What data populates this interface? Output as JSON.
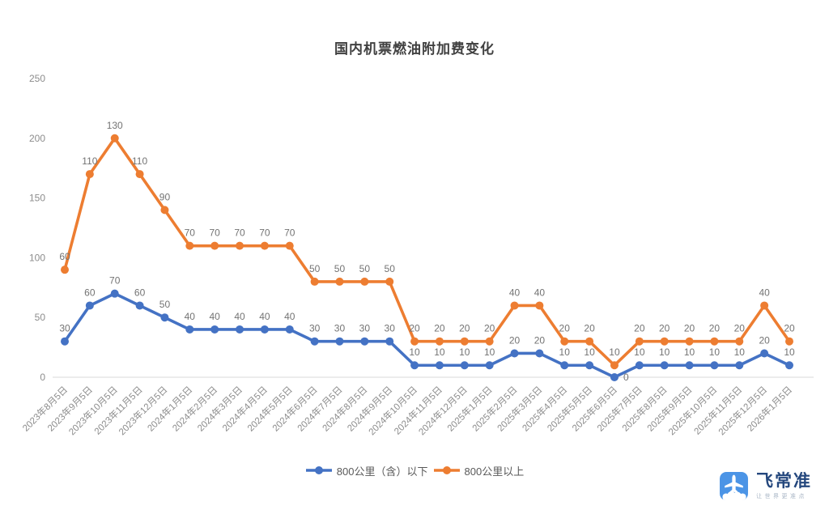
{
  "title": "国内机票燃油附加费变化",
  "chart_data": {
    "type": "line",
    "stacked": true,
    "title": "国内机票燃油附加费变化",
    "xlabel": "",
    "ylabel": "",
    "ylim": [
      0,
      250
    ],
    "yticks": [
      0,
      50,
      100,
      150,
      200,
      250
    ],
    "grid": false,
    "legend_position": "bottom",
    "data_labels": true,
    "categories": [
      "2023年8月5日",
      "2023年9月5日",
      "2023年10月5日",
      "2023年11月5日",
      "2023年12月5日",
      "2024年1月5日",
      "2024年2月5日",
      "2024年3月5日",
      "2024年4月5日",
      "2024年5月5日",
      "2024年6月5日",
      "2024年7月5日",
      "2024年8月5日",
      "2024年9月5日",
      "2024年10月5日",
      "2024年11月5日",
      "2024年12月5日",
      "2025年1月5日",
      "2025年2月5日",
      "2025年3月5日",
      "2025年4月5日",
      "2025年5月5日",
      "2025年6月5日",
      "2025年7月5日",
      "2025年8月5日",
      "2025年9月5日",
      "2025年10月5日",
      "2025年11月5日",
      "2025年12月5日",
      "2026年1月5日"
    ],
    "series": [
      {
        "name": "800公里（含）以下",
        "color": "#4472C4",
        "values": [
          30,
          60,
          70,
          60,
          50,
          40,
          40,
          40,
          40,
          40,
          30,
          30,
          30,
          30,
          10,
          10,
          10,
          10,
          20,
          20,
          10,
          10,
          0,
          10,
          10,
          10,
          10,
          10,
          20,
          10
        ]
      },
      {
        "name": "800公里以上",
        "color": "#ED7D31",
        "values": [
          60,
          110,
          130,
          110,
          90,
          70,
          70,
          70,
          70,
          70,
          50,
          50,
          50,
          50,
          20,
          20,
          20,
          20,
          40,
          40,
          20,
          20,
          10,
          20,
          20,
          20,
          20,
          20,
          40,
          20
        ]
      }
    ]
  },
  "legend": {
    "items": [
      {
        "label": "800公里（含）以下",
        "color": "#4472C4"
      },
      {
        "label": "800公里以上",
        "color": "#ED7D31"
      }
    ]
  },
  "logo": {
    "name": "飞常准",
    "tagline": "让世界更准点",
    "icon": "airplane-app-icon",
    "brand_color": "#4b94e6",
    "text_color": "#24477d"
  },
  "colors": {
    "axis_line": "#d9d9d9",
    "axis_text": "#8c8c8c",
    "data_label_text": "#737373",
    "title_text": "#404040"
  }
}
